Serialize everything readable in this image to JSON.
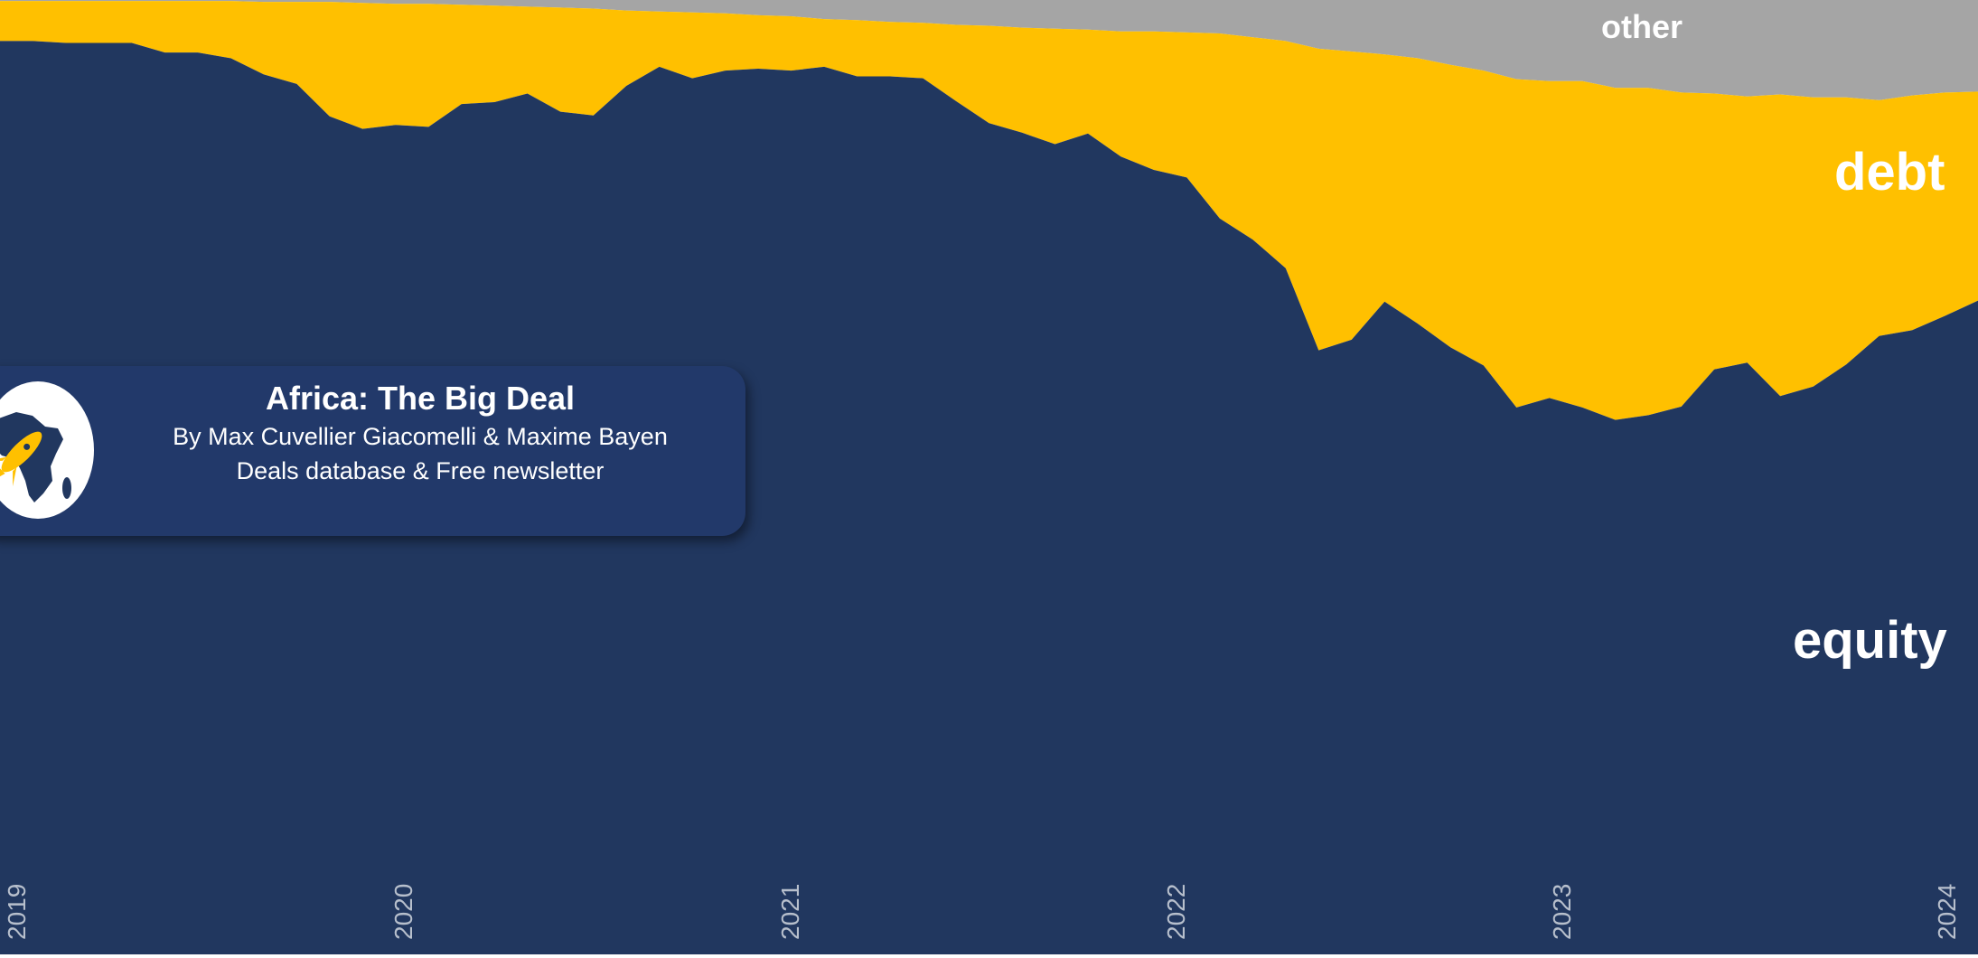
{
  "colors": {
    "equity": "#21375f",
    "debt": "#ffc000",
    "other": "#a5a5a5",
    "tick_text": "#b7bfcc",
    "label_text": "#ffffff",
    "card_bg": "#22396a"
  },
  "credit": {
    "title": "Africa: The Big Deal",
    "byline": "By Max Cuvellier Giacomelli & Maxime Bayen",
    "links": "Deals database & Free newsletter",
    "logo_icon": "africa-rocket-logo-icon"
  },
  "chart_data": {
    "type": "area",
    "stacked": true,
    "normalized": true,
    "x_ticks": [
      "2019",
      "2020",
      "2021",
      "2022",
      "2023",
      "2024"
    ],
    "xlim": [
      "2019-01",
      "2024-01"
    ],
    "ylim": [
      0,
      100
    ],
    "x": [
      "2019-01",
      "2019-02",
      "2019-03",
      "2019-04",
      "2019-05",
      "2019-06",
      "2019-07",
      "2019-08",
      "2019-09",
      "2019-10",
      "2019-11",
      "2019-12",
      "2020-01",
      "2020-02",
      "2020-03",
      "2020-04",
      "2020-05",
      "2020-06",
      "2020-07",
      "2020-08",
      "2020-09",
      "2020-10",
      "2020-11",
      "2020-12",
      "2021-01",
      "2021-02",
      "2021-03",
      "2021-04",
      "2021-05",
      "2021-06",
      "2021-07",
      "2021-08",
      "2021-09",
      "2021-10",
      "2021-11",
      "2021-12",
      "2022-01",
      "2022-02",
      "2022-03",
      "2022-04",
      "2022-05",
      "2022-06",
      "2022-07",
      "2022-08",
      "2022-09",
      "2022-10",
      "2022-11",
      "2022-12",
      "2023-01",
      "2023-02",
      "2023-03",
      "2023-04",
      "2023-05",
      "2023-06",
      "2023-07",
      "2023-08",
      "2023-09",
      "2023-10",
      "2023-11",
      "2023-12",
      "2024-01"
    ],
    "series": [
      {
        "name": "equity",
        "values": [
          95.7,
          95.7,
          95.5,
          95.5,
          95.5,
          94.5,
          94.5,
          93.9,
          92.2,
          91.2,
          87.8,
          86.5,
          86.9,
          86.7,
          89.1,
          89.3,
          90.2,
          88.3,
          87.9,
          91.0,
          93.0,
          91.8,
          92.6,
          92.8,
          92.6,
          93.0,
          92.0,
          92.0,
          91.8,
          89.4,
          87.1,
          86.1,
          84.9,
          86.0,
          83.6,
          82.2,
          81.4,
          77.1,
          74.9,
          71.9,
          63.3,
          64.4,
          68.4,
          66.1,
          63.6,
          61.7,
          57.3,
          58.3,
          57.3,
          56.0,
          56.5,
          57.4,
          61.3,
          62.0,
          58.5,
          59.5,
          61.8,
          64.8,
          65.4,
          66.9,
          68.5
        ]
      },
      {
        "name": "debt",
        "values": [
          4.2,
          4.2,
          4.4,
          4.4,
          4.4,
          5.4,
          5.4,
          6.0,
          7.6,
          8.6,
          12.0,
          13.2,
          12.7,
          12.9,
          10.4,
          10.1,
          9.1,
          10.9,
          11.2,
          7.9,
          5.8,
          6.9,
          6.0,
          5.6,
          5.7,
          5.0,
          5.9,
          5.7,
          5.8,
          8.0,
          10.2,
          11.0,
          12.1,
          10.9,
          13.1,
          14.5,
          15.2,
          19.4,
          21.2,
          23.8,
          31.6,
          30.2,
          25.9,
          27.8,
          29.6,
          30.9,
          34.4,
          33.2,
          34.2,
          34.8,
          34.3,
          32.9,
          28.9,
          27.9,
          31.6,
          30.3,
          28.0,
          24.7,
          24.6,
          23.4,
          21.9
        ]
      },
      {
        "name": "other",
        "values": [
          0.1,
          0.1,
          0.1,
          0.1,
          0.1,
          0.1,
          0.1,
          0.1,
          0.2,
          0.2,
          0.2,
          0.3,
          0.4,
          0.4,
          0.5,
          0.6,
          0.7,
          0.8,
          0.9,
          1.1,
          1.2,
          1.3,
          1.4,
          1.6,
          1.7,
          2.0,
          2.1,
          2.3,
          2.4,
          2.6,
          2.7,
          2.9,
          3.0,
          3.1,
          3.3,
          3.3,
          3.4,
          3.5,
          3.9,
          4.3,
          5.1,
          5.4,
          5.7,
          6.1,
          6.8,
          7.4,
          8.3,
          8.5,
          8.5,
          9.2,
          9.2,
          9.7,
          9.8,
          10.1,
          9.9,
          10.2,
          10.2,
          10.5,
          10.0,
          9.7,
          9.6
        ]
      }
    ]
  }
}
